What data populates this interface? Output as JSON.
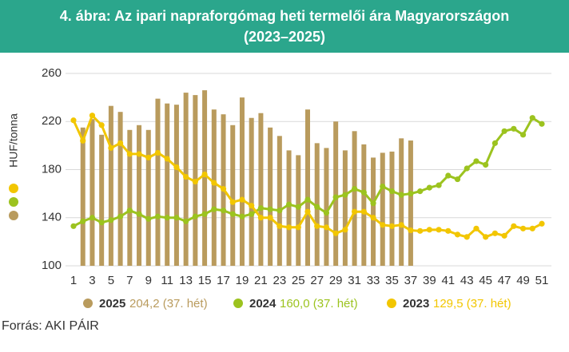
{
  "chart_data": {
    "type": "bar",
    "title": "4. ábra: Az ipari napraforgómag heti termelői ára Magyarországon",
    "subtitle": "(2023–2025)",
    "y_label": "HUF/tonna",
    "source": "Forrás: AKI PÁIR",
    "categories": [
      "1",
      null,
      "3",
      null,
      "5",
      null,
      "7",
      null,
      "9",
      null,
      "11",
      null,
      "13",
      null,
      "15",
      null,
      "17",
      null,
      "19",
      null,
      "21",
      null,
      "23",
      null,
      "25",
      null,
      "27",
      null,
      "29",
      null,
      "31",
      null,
      "33",
      null,
      "35",
      null,
      "37",
      null,
      "39",
      null,
      "41",
      null,
      "43",
      null,
      "45",
      null,
      "47",
      null,
      "49",
      null,
      "51"
    ],
    "ylim": [
      100,
      260
    ],
    "yticks": [
      100,
      140,
      180,
      220,
      260
    ],
    "grid": true,
    "series": [
      {
        "name": "2025",
        "note": "204,2 (37. hét)",
        "type": "bar",
        "color": "#b99b5d",
        "values": [
          null,
          215,
          222,
          209,
          233,
          228,
          213,
          217,
          213,
          239,
          235,
          234,
          244,
          242,
          246,
          230,
          226,
          217,
          240,
          223,
          227,
          215,
          208,
          196,
          192,
          230,
          202,
          198,
          220,
          196,
          212,
          201,
          190,
          194,
          195,
          206,
          204.2,
          null,
          null,
          null,
          null,
          null,
          null,
          null,
          null,
          null,
          null,
          null,
          null,
          null,
          null
        ]
      },
      {
        "name": "2024",
        "note": "160,0 (37. hét)",
        "type": "line",
        "color": "#9cc31f",
        "values": [
          133,
          137,
          140,
          136,
          138,
          141,
          146,
          143,
          139,
          141,
          140,
          140,
          137,
          141,
          143,
          147,
          146,
          143,
          141,
          143,
          148,
          147,
          146,
          151,
          149,
          155,
          149,
          144,
          157,
          159,
          164,
          161,
          152,
          166,
          162,
          159,
          160,
          162,
          165,
          167,
          175,
          172,
          181,
          187,
          184,
          202,
          212,
          214,
          209,
          223,
          218
        ]
      },
      {
        "name": "2023",
        "note": "129,5 (37. hét)",
        "type": "line",
        "color": "#f2c600",
        "values": [
          221,
          204,
          225,
          217,
          198,
          202,
          193,
          193,
          190,
          194,
          189,
          182,
          174,
          170,
          176,
          169,
          164,
          153,
          155,
          150,
          140,
          140,
          133,
          132,
          132,
          145,
          133,
          132,
          127,
          130,
          145,
          145,
          140,
          134,
          133,
          134,
          129.5,
          129,
          130,
          130,
          129,
          126,
          124,
          131,
          124,
          127,
          125,
          133,
          131,
          131,
          135
        ]
      }
    ]
  }
}
